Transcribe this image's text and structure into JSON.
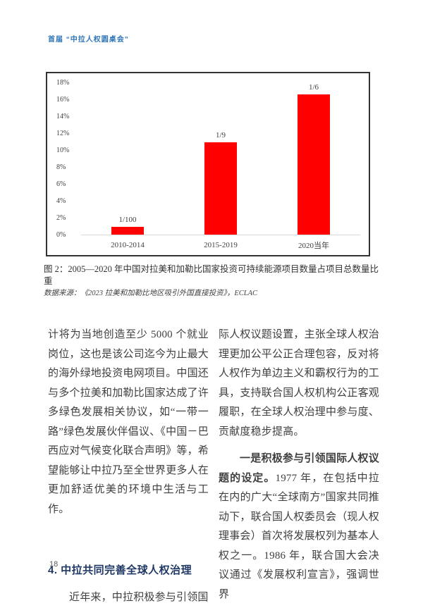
{
  "page": {
    "header": "首届 “中拉人权圆桌会”",
    "page_number": "18"
  },
  "figure": {
    "caption": "图 2：2005—2020 年中国对拉美和加勒比国家投资可持续能源项目数量占项目总数量比重",
    "source": "数据来源：《2023 拉美和加勒比地区吸引外国直接投资》，ECLAC"
  },
  "chart_data": {
    "type": "bar",
    "title": "2005—2020 年中国对拉美和加勒比国家投资可持续能源项目数量占项目总数量比重",
    "categories": [
      "2010-2014",
      "2015-2019",
      "2020当年"
    ],
    "values": [
      1,
      11,
      17
    ],
    "bar_labels": [
      "1/100",
      "1/9",
      "1/6"
    ],
    "unit": "%",
    "ylim": [
      0,
      18
    ],
    "ytick_step": 2,
    "yticks": [
      "0%",
      "2%",
      "4%",
      "6%",
      "8%",
      "10%",
      "12%",
      "14%",
      "16%",
      "18%"
    ],
    "xlabel": "",
    "ylabel": "",
    "grid": false,
    "legend": false,
    "bar_color": "#ff0000"
  },
  "body": {
    "left": {
      "para1": "计将为当地创造至少 5000 个就业岗位，这也是该公司迄今为止最大的海外绿地投资电网项目。中国还与多个拉美和加勒比国家达成了许多绿色发展相关协议，如“一带一路”绿色发展伙伴倡议、《中国－巴西应对气候变化联合声明》等，希望能够让中拉乃至全世界更多人在更加舒适优美的环境中生活与工作。",
      "heading": "4. 中拉共同完善全球人权治理",
      "para2": "近年来，中拉积极参与引领国"
    },
    "right": {
      "para1": "际人权议题设置，主张全球人权治理更加公平公正合理包容，反对将人权作为单边主义和霸权行为的工具，支持联合国人权机构公正客观履职，在全球人权治理中参与度、贡献度稳步提高。",
      "para2_lead": "一是积极参与引领国际人权议题的设定。",
      "para2_rest": "1977 年，在包括中拉在内的广大“全球南方”国家共同推动下，联合国人权委员会（现人权理事会）首次将发展权列为基本人权之一。1986 年，联合国大会决议通过《发展权利宣言》，强调世界"
    }
  },
  "colors": {
    "header_blue": "#2e75b6",
    "heading_navy": "#1f3864",
    "bar_red": "#ff0000",
    "body_text": "#3f3f3f",
    "chart_border": "#333333"
  }
}
